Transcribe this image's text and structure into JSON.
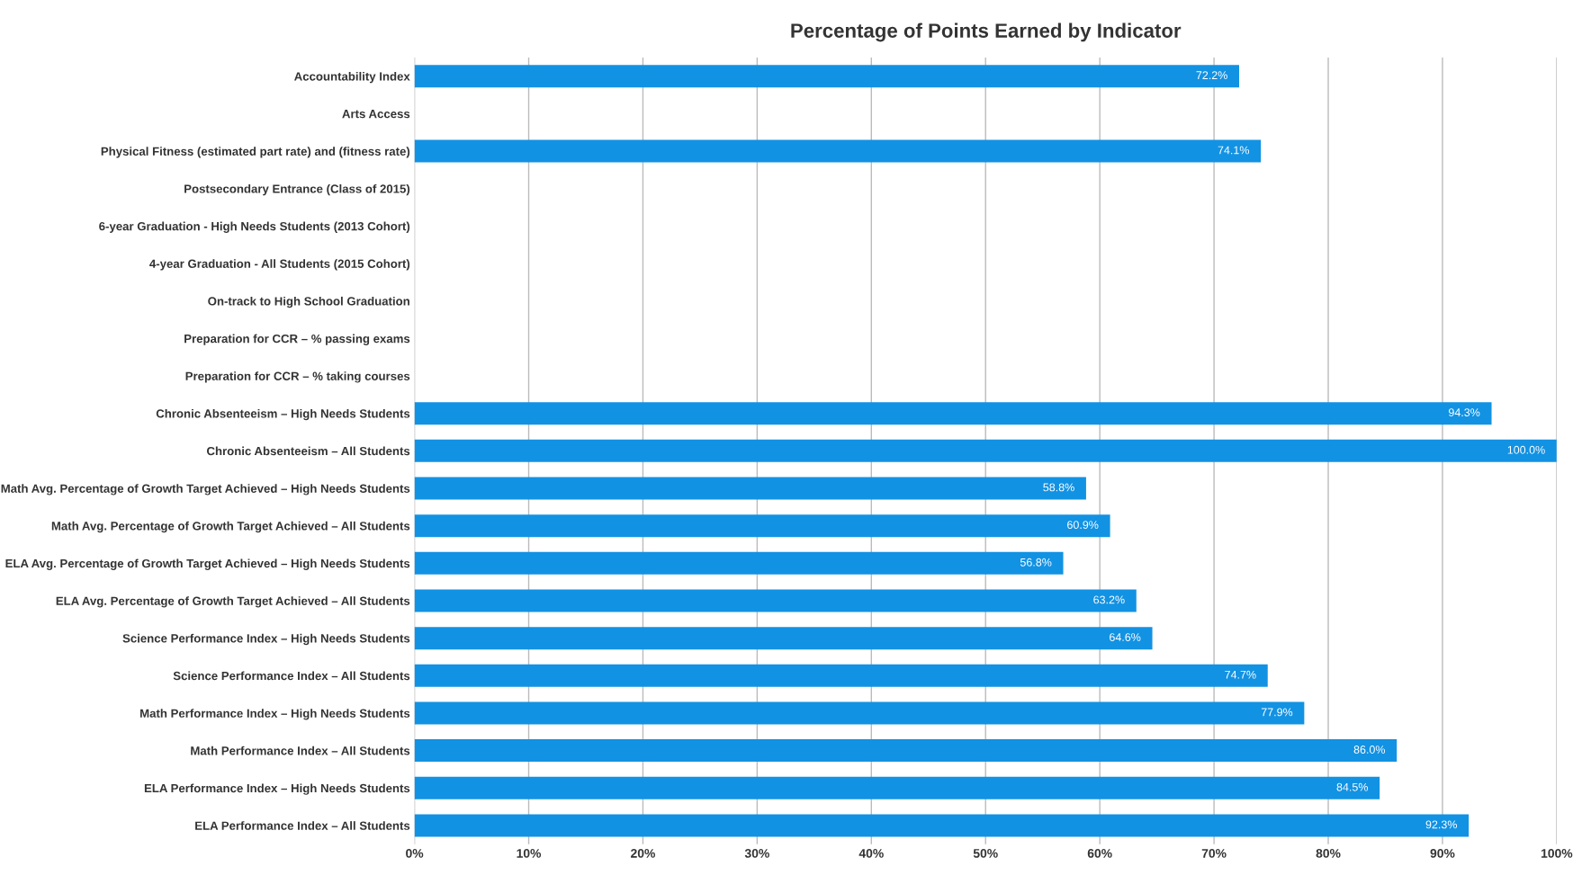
{
  "chart_data": {
    "type": "bar",
    "orientation": "horizontal",
    "title": "Percentage of Points Earned by Indicator",
    "categories": [
      "Accountability Index",
      "Arts Access",
      "Physical Fitness (estimated part rate) and (fitness rate)",
      "Postsecondary Entrance (Class of 2015)",
      "6-year Graduation - High Needs Students (2013 Cohort)",
      "4-year Graduation - All Students (2015 Cohort)",
      "On-track to High School Graduation",
      "Preparation for CCR – % passing exams",
      "Preparation for CCR – % taking courses",
      "Chronic Absenteeism – High Needs Students",
      "Chronic Absenteeism – All Students",
      "Math Avg. Percentage of Growth Target Achieved – High Needs Students",
      "Math Avg. Percentage of Growth Target Achieved – All Students",
      "ELA Avg. Percentage of Growth Target Achieved – High Needs Students",
      "ELA Avg. Percentage of Growth Target Achieved – All Students",
      "Science Performance Index – High Needs Students",
      "Science Performance Index – All Students",
      "Math Performance Index – High Needs Students",
      "Math Performance Index – All Students",
      "ELA Performance Index – High Needs Students",
      "ELA Performance Index – All Students"
    ],
    "values": [
      72.2,
      null,
      74.1,
      null,
      null,
      null,
      null,
      null,
      null,
      94.3,
      100.0,
      58.8,
      60.9,
      56.8,
      63.2,
      64.6,
      74.7,
      77.9,
      86.0,
      84.5,
      92.3
    ],
    "value_labels": [
      "72.2%",
      null,
      "74.1%",
      null,
      null,
      null,
      null,
      null,
      null,
      "94.3%",
      "100.0%",
      "58.8%",
      "60.9%",
      "56.8%",
      "63.2%",
      "64.6%",
      "74.7%",
      "77.9%",
      "86.0%",
      "84.5%",
      "92.3%"
    ],
    "color": "#1292e3",
    "xlim": [
      0,
      100
    ],
    "xticks": [
      {
        "value": 0,
        "label": "0%"
      },
      {
        "value": 10,
        "label": "10%"
      },
      {
        "value": 20,
        "label": "20%"
      },
      {
        "value": 30,
        "label": "30%"
      },
      {
        "value": 40,
        "label": "40%"
      },
      {
        "value": 50,
        "label": "50%"
      },
      {
        "value": 60,
        "label": "60%"
      },
      {
        "value": 70,
        "label": "70%"
      },
      {
        "value": 80,
        "label": "80%"
      },
      {
        "value": 90,
        "label": "90%"
      },
      {
        "value": 100,
        "label": "100%"
      }
    ],
    "grid": "x"
  }
}
